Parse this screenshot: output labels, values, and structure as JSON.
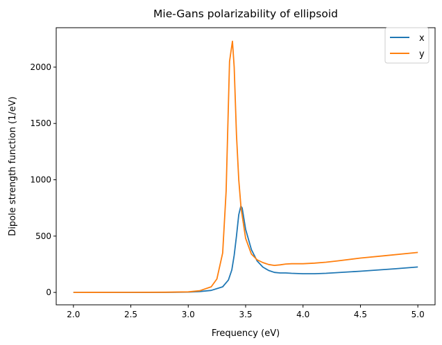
{
  "chart_data": {
    "type": "line",
    "title": "Mie-Gans polarizability of ellipsoid",
    "xlabel": "Frequency (eV)",
    "ylabel": "Dipole strength function (1/eV)",
    "xlim": [
      1.85,
      5.15
    ],
    "ylim": [
      -110,
      2350
    ],
    "xticks": [
      2.0,
      2.5,
      3.0,
      3.5,
      4.0,
      4.5,
      5.0
    ],
    "xtick_labels": [
      "2.0",
      "2.5",
      "3.0",
      "3.5",
      "4.0",
      "4.5",
      "5.0"
    ],
    "yticks": [
      0,
      500,
      1000,
      1500,
      2000
    ],
    "ytick_labels": [
      "0",
      "500",
      "1000",
      "1500",
      "2000"
    ],
    "grid": false,
    "legend": "top-right",
    "series": [
      {
        "name": "x",
        "color": "#1f77b4",
        "x": [
          2.0,
          2.5,
          2.8,
          3.0,
          3.1,
          3.2,
          3.3,
          3.35,
          3.38,
          3.4,
          3.42,
          3.44,
          3.458,
          3.47,
          3.5,
          3.55,
          3.6,
          3.65,
          3.7,
          3.75,
          3.8,
          3.85,
          3.9,
          4.0,
          4.1,
          4.2,
          4.5,
          4.8,
          5.0
        ],
        "y": [
          0,
          0,
          1,
          3,
          8,
          18,
          50,
          110,
          200,
          330,
          500,
          690,
          767,
          750,
          560,
          380,
          280,
          225,
          195,
          178,
          173,
          173,
          170,
          166,
          166,
          170,
          188,
          210,
          226
        ]
      },
      {
        "name": "y",
        "color": "#ff7f0e",
        "x": [
          2.0,
          2.5,
          2.8,
          3.0,
          3.1,
          3.2,
          3.25,
          3.3,
          3.33,
          3.36,
          3.385,
          3.4,
          3.42,
          3.44,
          3.46,
          3.5,
          3.55,
          3.6,
          3.65,
          3.7,
          3.75,
          3.8,
          3.85,
          3.9,
          4.0,
          4.1,
          4.2,
          4.3,
          4.5,
          4.7,
          5.0
        ],
        "y": [
          0,
          1,
          2,
          5,
          15,
          50,
          120,
          350,
          900,
          2050,
          2230,
          2000,
          1400,
          1000,
          750,
          480,
          340,
          290,
          265,
          248,
          240,
          245,
          252,
          255,
          255,
          260,
          268,
          280,
          305,
          325,
          355
        ]
      }
    ]
  }
}
